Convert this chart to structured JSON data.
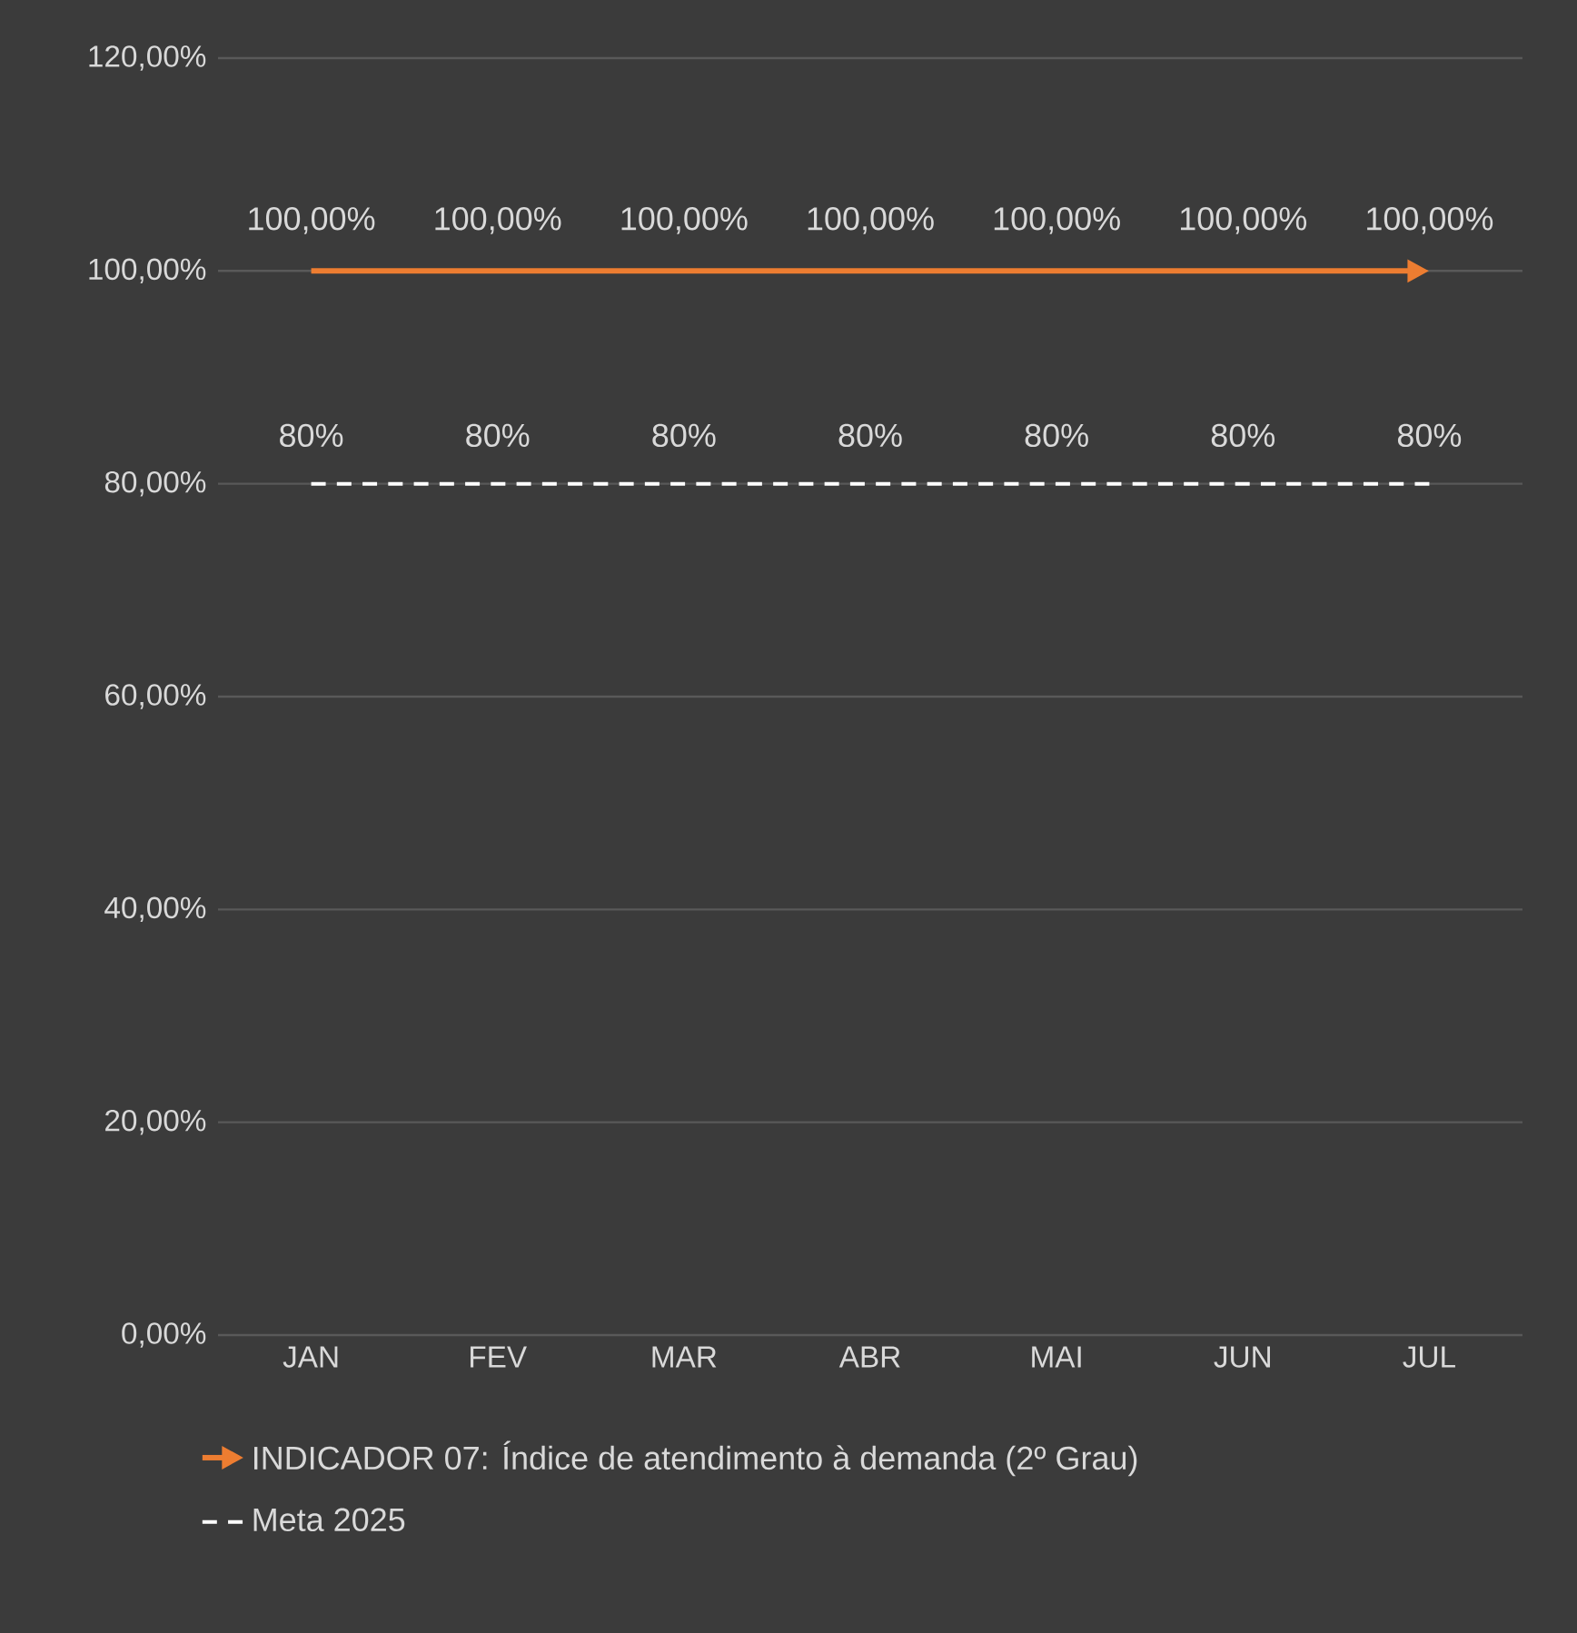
{
  "chart_data": {
    "type": "line",
    "categories": [
      "JAN",
      "FEV",
      "MAR",
      "ABR",
      "MAI",
      "JUN",
      "JUL"
    ],
    "ylim": [
      0,
      120
    ],
    "yticks": [
      {
        "value": 0,
        "label": "0,00%"
      },
      {
        "value": 20,
        "label": "20,00%"
      },
      {
        "value": 40,
        "label": "40,00%"
      },
      {
        "value": 60,
        "label": "60,00%"
      },
      {
        "value": 80,
        "label": "80,00%"
      },
      {
        "value": 100,
        "label": "100,00%"
      },
      {
        "value": 120,
        "label": "120,00%"
      }
    ],
    "grid": "y",
    "legend": "bottom",
    "marker": "none",
    "series": [
      {
        "name": "INDICADOR 07: Índice de atendimento à demanda (2º Grau)",
        "color": "#ed7d31",
        "line_style": "solid",
        "values": [
          100,
          100,
          100,
          100,
          100,
          100,
          100
        ],
        "value_labels": [
          "100,00%",
          "100,00%",
          "100,00%",
          "100,00%",
          "100,00%",
          "100,00%",
          "100,00%"
        ]
      },
      {
        "name": "Meta 2025",
        "color": "#ffffff",
        "line_style": "dashed",
        "values": [
          80,
          80,
          80,
          80,
          80,
          80,
          80
        ],
        "value_labels": [
          "80%",
          "80%",
          "80%",
          "80%",
          "80%",
          "80%",
          "80%"
        ]
      }
    ]
  }
}
